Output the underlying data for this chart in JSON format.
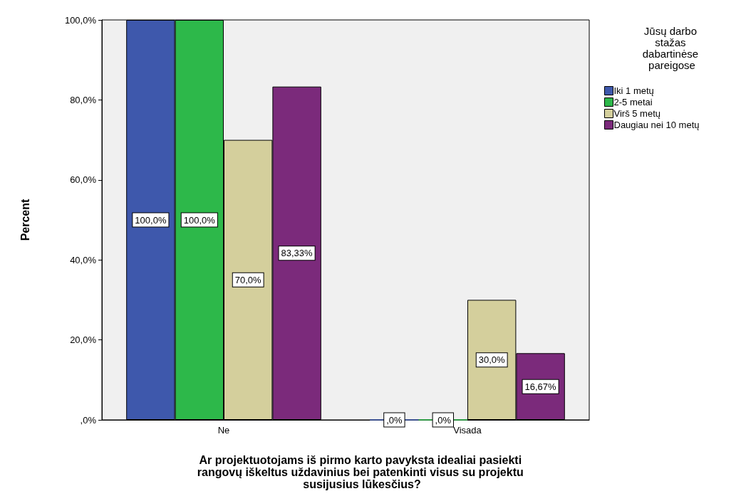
{
  "chart_data": {
    "type": "bar",
    "xlabel": "Ar projektuotojams iš pirmo karto pavyksta idealiai pasiekti rangovų iškeltus uždavinius bei patenkinti visus su projektu susijusius lūkesčius?",
    "ylabel": "Percent",
    "legend_title": "Jūsų darbo stažas dabartinėse pareigose",
    "legend": "right",
    "grid": false,
    "categories": [
      "Ne",
      "Visada"
    ],
    "ylim": [
      0,
      100
    ],
    "yticks": [
      {
        "value": 0,
        "label": ",0%"
      },
      {
        "value": 20,
        "label": "20,0%"
      },
      {
        "value": 40,
        "label": "40,0%"
      },
      {
        "value": 60,
        "label": "60,0%"
      },
      {
        "value": 80,
        "label": "80,0%"
      },
      {
        "value": 100,
        "label": "100,0%"
      }
    ],
    "series": [
      {
        "name": "Iki 1 metų",
        "color": "#3e58ac",
        "values": [
          100,
          0
        ],
        "value_labels": [
          "100,0%",
          ",0%"
        ]
      },
      {
        "name": "2-5 metai",
        "color": "#2db84a",
        "values": [
          100,
          0
        ],
        "value_labels": [
          "100,0%",
          ",0%"
        ]
      },
      {
        "name": "Virš 5 metų",
        "color": "#d4cf9c",
        "values": [
          70,
          30
        ],
        "value_labels": [
          "70,0%",
          "30,0%"
        ]
      },
      {
        "name": "Daugiau nei 10 metų",
        "color": "#7b2a7b",
        "values": [
          83.33,
          16.67
        ],
        "value_labels": [
          "83,33%",
          "16,67%"
        ]
      }
    ]
  }
}
